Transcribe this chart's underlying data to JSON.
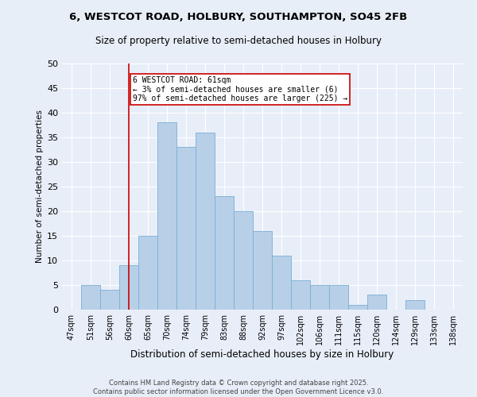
{
  "title1": "6, WESTCOT ROAD, HOLBURY, SOUTHAMPTON, SO45 2FB",
  "title2": "Size of property relative to semi-detached houses in Holbury",
  "xlabel": "Distribution of semi-detached houses by size in Holbury",
  "ylabel": "Number of semi-detached properties",
  "categories": [
    "47sqm",
    "51sqm",
    "56sqm",
    "60sqm",
    "65sqm",
    "70sqm",
    "74sqm",
    "79sqm",
    "83sqm",
    "88sqm",
    "92sqm",
    "97sqm",
    "102sqm",
    "106sqm",
    "111sqm",
    "115sqm",
    "120sqm",
    "124sqm",
    "129sqm",
    "133sqm",
    "138sqm"
  ],
  "values": [
    0,
    5,
    4,
    9,
    15,
    38,
    33,
    36,
    23,
    20,
    16,
    11,
    6,
    5,
    5,
    1,
    3,
    0,
    2,
    0,
    0
  ],
  "bar_color": "#b8cfe8",
  "bar_edge_color": "#7aafd4",
  "bg_color": "#e8eef8",
  "grid_color": "#ffffff",
  "vline_x_index": 3,
  "vline_color": "#cc0000",
  "annotation_title": "6 WESTCOT ROAD: 61sqm",
  "annotation_line1": "← 3% of semi-detached houses are smaller (6)",
  "annotation_line2": "97% of semi-detached houses are larger (225) →",
  "annotation_box_color": "#ffffff",
  "annotation_box_edge": "#cc0000",
  "ylim": [
    0,
    50
  ],
  "yticks": [
    0,
    5,
    10,
    15,
    20,
    25,
    30,
    35,
    40,
    45,
    50
  ],
  "footer1": "Contains HM Land Registry data © Crown copyright and database right 2025.",
  "footer2": "Contains public sector information licensed under the Open Government Licence v3.0."
}
